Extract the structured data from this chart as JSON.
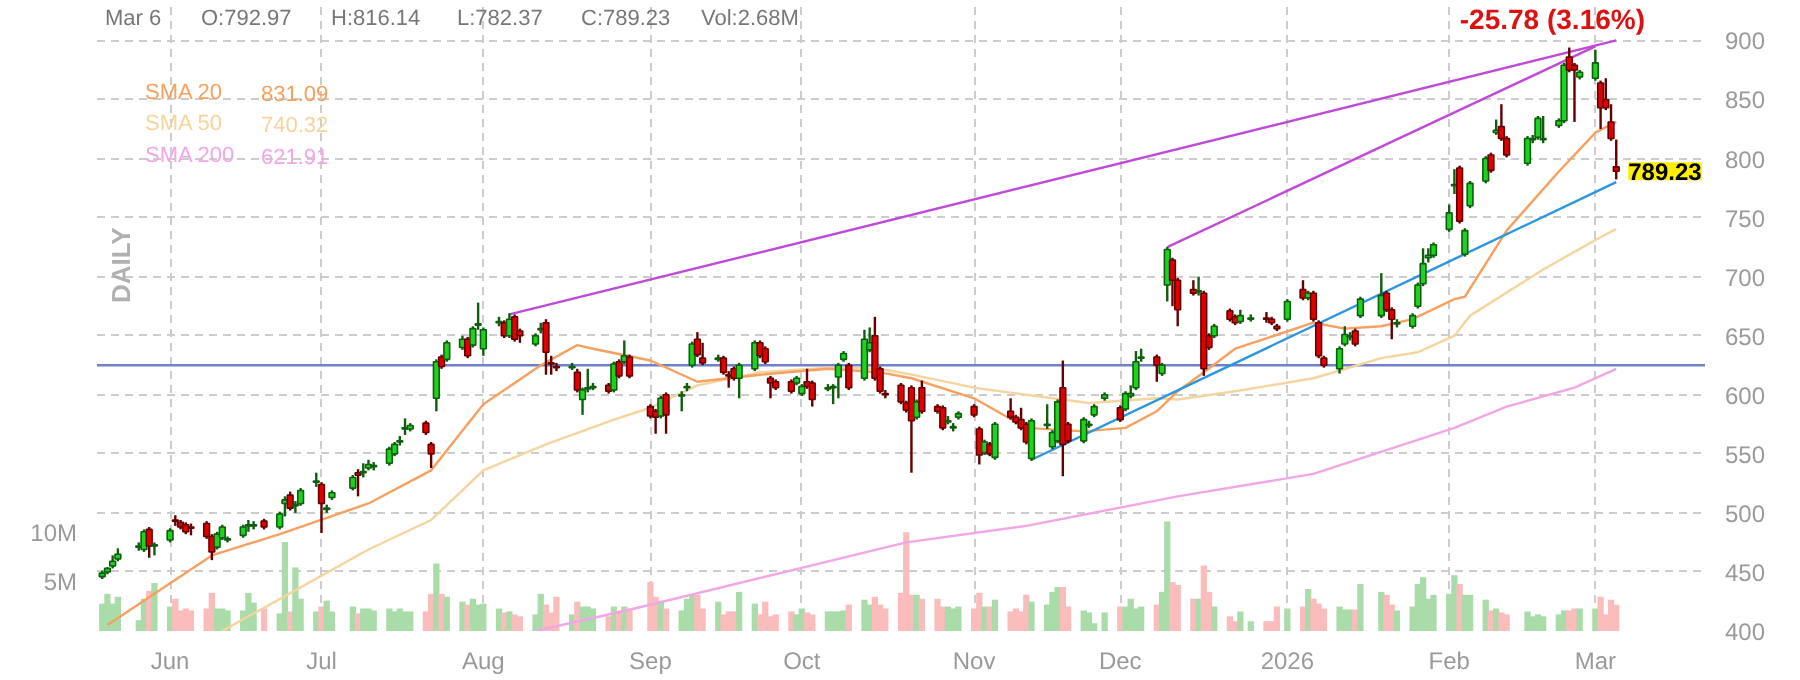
{
  "chart_data": {
    "type": "candlestick",
    "x": [
      "2025-05-20",
      "2025-05-21",
      "2025-05-22",
      "2025-05-23",
      "2025-05-27",
      "2025-05-28",
      "2025-05-29",
      "2025-05-30",
      "2025-06-02",
      "2025-06-03",
      "2025-06-04",
      "2025-06-05",
      "2025-06-06",
      "2025-06-09",
      "2025-06-10",
      "2025-06-11",
      "2025-06-12",
      "2025-06-13",
      "2025-06-16",
      "2025-06-17",
      "2025-06-18",
      "2025-06-20",
      "2025-06-23",
      "2025-06-24",
      "2025-06-25",
      "2025-06-26",
      "2025-06-27",
      "2025-06-30",
      "2025-07-01",
      "2025-07-02",
      "2025-07-03",
      "2025-07-07",
      "2025-07-08",
      "2025-07-09",
      "2025-07-10",
      "2025-07-11",
      "2025-07-14",
      "2025-07-15",
      "2025-07-16",
      "2025-07-17",
      "2025-07-18",
      "2025-07-21",
      "2025-07-22",
      "2025-07-23",
      "2025-07-24",
      "2025-07-25",
      "2025-07-28",
      "2025-07-29",
      "2025-07-30",
      "2025-07-31",
      "2025-08-01",
      "2025-08-04",
      "2025-08-05",
      "2025-08-06",
      "2025-08-07",
      "2025-08-08",
      "2025-08-11",
      "2025-08-12",
      "2025-08-13",
      "2025-08-14",
      "2025-08-15",
      "2025-08-18",
      "2025-08-19",
      "2025-08-20",
      "2025-08-21",
      "2025-08-22",
      "2025-08-25",
      "2025-08-26",
      "2025-08-27",
      "2025-08-28",
      "2025-08-29",
      "2025-09-02",
      "2025-09-03",
      "2025-09-04",
      "2025-09-05",
      "2025-09-08",
      "2025-09-09",
      "2025-09-10",
      "2025-09-11",
      "2025-09-12",
      "2025-09-15",
      "2025-09-16",
      "2025-09-17",
      "2025-09-18",
      "2025-09-19",
      "2025-09-22",
      "2025-09-23",
      "2025-09-24",
      "2025-09-25",
      "2025-09-26",
      "2025-09-29",
      "2025-09-30",
      "2025-10-01",
      "2025-10-02",
      "2025-10-03",
      "2025-10-06",
      "2025-10-07",
      "2025-10-08",
      "2025-10-09",
      "2025-10-10",
      "2025-10-13",
      "2025-10-14",
      "2025-10-15",
      "2025-10-16",
      "2025-10-17",
      "2025-10-20",
      "2025-10-21",
      "2025-10-22",
      "2025-10-23",
      "2025-10-24",
      "2025-10-27",
      "2025-10-28",
      "2025-10-29",
      "2025-10-30",
      "2025-10-31",
      "2025-11-03",
      "2025-11-04",
      "2025-11-05",
      "2025-11-06",
      "2025-11-07",
      "2025-11-10",
      "2025-11-11",
      "2025-11-12",
      "2025-11-13",
      "2025-11-14",
      "2025-11-17",
      "2025-11-18",
      "2025-11-19",
      "2025-11-20",
      "2025-11-21",
      "2025-11-24",
      "2025-11-25",
      "2025-11-26",
      "2025-11-28",
      "2025-12-01",
      "2025-12-02",
      "2025-12-03",
      "2025-12-04",
      "2025-12-05",
      "2025-12-08",
      "2025-12-09",
      "2025-12-10",
      "2025-12-11",
      "2025-12-12",
      "2025-12-15",
      "2025-12-16",
      "2025-12-17",
      "2025-12-18",
      "2025-12-19",
      "2025-12-22",
      "2025-12-23",
      "2025-12-24",
      "2025-12-26",
      "2025-12-29",
      "2025-12-30",
      "2025-12-31",
      "2026-01-02",
      "2026-01-05",
      "2026-01-06",
      "2026-01-07",
      "2026-01-08",
      "2026-01-09",
      "2026-01-12",
      "2026-01-13",
      "2026-01-14",
      "2026-01-15",
      "2026-01-16",
      "2026-01-20",
      "2026-01-21",
      "2026-01-22",
      "2026-01-23",
      "2026-01-26",
      "2026-01-27",
      "2026-01-28",
      "2026-01-29",
      "2026-01-30",
      "2026-02-02",
      "2026-02-03",
      "2026-02-04",
      "2026-02-05",
      "2026-02-06",
      "2026-02-09",
      "2026-02-10",
      "2026-02-11",
      "2026-02-12",
      "2026-02-13",
      "2026-02-17",
      "2026-02-18",
      "2026-02-19",
      "2026-02-20",
      "2026-02-23",
      "2026-02-24",
      "2026-02-25",
      "2026-02-26",
      "2026-02-27",
      "2026-03-02",
      "2026-03-03",
      "2026-03-04",
      "2026-03-05",
      "2026-03-06"
    ],
    "ohlc": [
      [
        446,
        451,
        444,
        449
      ],
      [
        450,
        454,
        448,
        453
      ],
      [
        455,
        464,
        453,
        459
      ],
      [
        461,
        470,
        459,
        465
      ],
      [
        471,
        475,
        468,
        472
      ],
      [
        469,
        486,
        467,
        484
      ],
      [
        486,
        488,
        462,
        472
      ],
      [
        472,
        475,
        464,
        473
      ],
      [
        477,
        487,
        475,
        485
      ],
      [
        494,
        498,
        489,
        493
      ],
      [
        492,
        494,
        486,
        488
      ],
      [
        490,
        492,
        482,
        484
      ],
      [
        488,
        491,
        481,
        487
      ],
      [
        491,
        493,
        478,
        480
      ],
      [
        480,
        482,
        460,
        467
      ],
      [
        471,
        484,
        469,
        482
      ],
      [
        479,
        490,
        477,
        488
      ],
      [
        477,
        480,
        475,
        478
      ],
      [
        481,
        490,
        479,
        488
      ],
      [
        489,
        494,
        484,
        490
      ],
      [
        489,
        493,
        486,
        490
      ],
      [
        493,
        495,
        486,
        488
      ],
      [
        488,
        501,
        486,
        499
      ],
      [
        508,
        514,
        497,
        511
      ],
      [
        515,
        518,
        502,
        504
      ],
      [
        506,
        510,
        500,
        507
      ],
      [
        508,
        521,
        506,
        519
      ],
      [
        526,
        534,
        522,
        527
      ],
      [
        524,
        526,
        483,
        508
      ],
      [
        503,
        507,
        500,
        504
      ],
      [
        513,
        519,
        511,
        517
      ],
      [
        521,
        532,
        519,
        530
      ],
      [
        534,
        537,
        514,
        532
      ],
      [
        534,
        542,
        530,
        535
      ],
      [
        538,
        545,
        536,
        541
      ],
      [
        539,
        543,
        536,
        540
      ],
      [
        542,
        556,
        540,
        554
      ],
      [
        550,
        560,
        548,
        558
      ],
      [
        560,
        565,
        557,
        561
      ],
      [
        571,
        580,
        566,
        572
      ],
      [
        571,
        576,
        569,
        574
      ],
      [
        576,
        578,
        566,
        568
      ],
      [
        558,
        560,
        538,
        550
      ],
      [
        597,
        630,
        586,
        628
      ],
      [
        632,
        634,
        622,
        624
      ],
      [
        630,
        646,
        628,
        644
      ],
      [
        640,
        650,
        638,
        647
      ],
      [
        647,
        649,
        631,
        633
      ],
      [
        642,
        658,
        640,
        656
      ],
      [
        659,
        678,
        655,
        660
      ],
      [
        639,
        657,
        633,
        655
      ],
      [
        661,
        666,
        658,
        662
      ],
      [
        661,
        663,
        648,
        650
      ],
      [
        650,
        669,
        648,
        664
      ],
      [
        666,
        668,
        645,
        647
      ],
      [
        654,
        656,
        644,
        650
      ],
      [
        643,
        652,
        641,
        650
      ],
      [
        655,
        661,
        652,
        656
      ],
      [
        661,
        664,
        617,
        636
      ],
      [
        627,
        633,
        617,
        626
      ],
      [
        624,
        627,
        620,
        623
      ],
      [
        623,
        627,
        621,
        624
      ],
      [
        619,
        622,
        602,
        604
      ],
      [
        596,
        606,
        583,
        604
      ],
      [
        605,
        622,
        602,
        606
      ],
      [
        606,
        610,
        604,
        607
      ],
      [
        608,
        610,
        601,
        603
      ],
      [
        604,
        628,
        602,
        626
      ],
      [
        628,
        630,
        614,
        616
      ],
      [
        628,
        646,
        626,
        633
      ],
      [
        632,
        634,
        614,
        616
      ],
      [
        590,
        592,
        580,
        582
      ],
      [
        586,
        588,
        567,
        581
      ],
      [
        582,
        599,
        580,
        597
      ],
      [
        600,
        602,
        567,
        583
      ],
      [
        599,
        603,
        586,
        600
      ],
      [
        606,
        610,
        603,
        607
      ],
      [
        625,
        645,
        623,
        643
      ],
      [
        647,
        653,
        632,
        634
      ],
      [
        631,
        644,
        625,
        627
      ],
      [
        630,
        634,
        628,
        631
      ],
      [
        631,
        633,
        617,
        619
      ],
      [
        617,
        620,
        606,
        616
      ],
      [
        622,
        624,
        612,
        614
      ],
      [
        614,
        627,
        597,
        625
      ],
      [
        622,
        646,
        620,
        644
      ],
      [
        644,
        646,
        631,
        633
      ],
      [
        639,
        641,
        626,
        628
      ],
      [
        614,
        616,
        597,
        610
      ],
      [
        611,
        613,
        604,
        606
      ],
      [
        611,
        613,
        601,
        603
      ],
      [
        610,
        616,
        608,
        614
      ],
      [
        601,
        609,
        599,
        607
      ],
      [
        611,
        622,
        605,
        607
      ],
      [
        610,
        612,
        590,
        596
      ],
      [
        605,
        609,
        603,
        606
      ],
      [
        606,
        609,
        592,
        607
      ],
      [
        615,
        627,
        597,
        625
      ],
      [
        630,
        637,
        628,
        635
      ],
      [
        625,
        627,
        604,
        606
      ],
      [
        614,
        655,
        612,
        647
      ],
      [
        638,
        657,
        636,
        644
      ],
      [
        650,
        666,
        612,
        614
      ],
      [
        622,
        624,
        601,
        603
      ],
      [
        601,
        604,
        597,
        600
      ],
      [
        608,
        610,
        592,
        594
      ],
      [
        593,
        595,
        585,
        587
      ],
      [
        606,
        608,
        534,
        578
      ],
      [
        581,
        596,
        579,
        594
      ],
      [
        606,
        612,
        584,
        586
      ],
      [
        590,
        592,
        584,
        586
      ],
      [
        589,
        591,
        570,
        572
      ],
      [
        577,
        582,
        575,
        578
      ],
      [
        572,
        576,
        569,
        573
      ],
      [
        581,
        586,
        579,
        584
      ],
      [
        590,
        592,
        581,
        583
      ],
      [
        571,
        573,
        541,
        549
      ],
      [
        551,
        562,
        549,
        560
      ],
      [
        558,
        560,
        548,
        550
      ],
      [
        547,
        577,
        545,
        575
      ],
      [
        586,
        597,
        579,
        581
      ],
      [
        581,
        583,
        575,
        577
      ],
      [
        579,
        589,
        570,
        572
      ],
      [
        575,
        577,
        558,
        560
      ],
      [
        546,
        580,
        544,
        578
      ],
      [
        574,
        592,
        571,
        575
      ],
      [
        556,
        570,
        554,
        568
      ],
      [
        561,
        596,
        559,
        594
      ],
      [
        606,
        629,
        531,
        558
      ],
      [
        575,
        577,
        559,
        561
      ],
      [
        561,
        581,
        559,
        579
      ],
      [
        574,
        578,
        572,
        575
      ],
      [
        583,
        592,
        581,
        590
      ],
      [
        597,
        602,
        595,
        600
      ],
      [
        589,
        591,
        577,
        579
      ],
      [
        588,
        603,
        586,
        601
      ],
      [
        599,
        608,
        597,
        601
      ],
      [
        606,
        637,
        604,
        628
      ],
      [
        631,
        639,
        628,
        632
      ],
      [
        632,
        634,
        611,
        625
      ],
      [
        618,
        627,
        616,
        625
      ],
      [
        693,
        725,
        679,
        723
      ],
      [
        714,
        716,
        675,
        697
      ],
      [
        697,
        699,
        658,
        672
      ],
      [
        689,
        697,
        684,
        686
      ],
      [
        687,
        700,
        684,
        688
      ],
      [
        686,
        688,
        616,
        622
      ],
      [
        650,
        652,
        638,
        640
      ],
      [
        650,
        660,
        648,
        658
      ],
      [
        671,
        673,
        662,
        664
      ],
      [
        666,
        668,
        659,
        661
      ],
      [
        662,
        672,
        660,
        667
      ],
      [
        664,
        668,
        662,
        665
      ],
      [
        665,
        670,
        661,
        664
      ],
      [
        664,
        666,
        659,
        661
      ],
      [
        658,
        660,
        654,
        656
      ],
      [
        664,
        681,
        662,
        679
      ],
      [
        689,
        697,
        680,
        682
      ],
      [
        682,
        688,
        680,
        686
      ],
      [
        686,
        688,
        662,
        664
      ],
      [
        661,
        663,
        631,
        633
      ],
      [
        631,
        633,
        623,
        625
      ],
      [
        622,
        641,
        618,
        639
      ],
      [
        643,
        658,
        641,
        651
      ],
      [
        649,
        653,
        646,
        650
      ],
      [
        654,
        656,
        641,
        643
      ],
      [
        667,
        683,
        665,
        681
      ],
      [
        667,
        703,
        665,
        684
      ],
      [
        686,
        688,
        670,
        672
      ],
      [
        672,
        674,
        647,
        664
      ],
      [
        660,
        664,
        657,
        661
      ],
      [
        658,
        669,
        656,
        667
      ],
      [
        675,
        695,
        673,
        693
      ],
      [
        694,
        724,
        692,
        711
      ],
      [
        716,
        724,
        712,
        718
      ],
      [
        718,
        729,
        716,
        727
      ],
      [
        740,
        761,
        738,
        754
      ],
      [
        777,
        791,
        770,
        778
      ],
      [
        792,
        794,
        745,
        747
      ],
      [
        719,
        741,
        717,
        739
      ],
      [
        760,
        781,
        758,
        779
      ],
      [
        781,
        802,
        779,
        800
      ],
      [
        803,
        805,
        788,
        790
      ],
      [
        822,
        833,
        820,
        824
      ],
      [
        827,
        846,
        815,
        817
      ],
      [
        817,
        819,
        801,
        803
      ],
      [
        796,
        819,
        794,
        817
      ],
      [
        816,
        820,
        813,
        817
      ],
      [
        818,
        836,
        816,
        834
      ],
      [
        816,
        836,
        813,
        817
      ],
      [
        828,
        834,
        826,
        832
      ],
      [
        832,
        881,
        830,
        879
      ],
      [
        886,
        894,
        873,
        875
      ],
      [
        879,
        881,
        831,
        875
      ],
      [
        869,
        875,
        867,
        873
      ],
      [
        868,
        892,
        866,
        881
      ],
      [
        864,
        866,
        825,
        843
      ],
      [
        850,
        868,
        841,
        843
      ],
      [
        831,
        846,
        815,
        817
      ],
      [
        792.97,
        816.14,
        782.37,
        789.23
      ]
    ],
    "colors": [
      "#1ed21e",
      "#1ed21e",
      "#1ed21e",
      "#1ed21e",
      "#1ed21e",
      "#1ed21e",
      "#e00000",
      "#1ed21e",
      "#1ed21e",
      "#e00000",
      "#e00000",
      "#e00000",
      "#e00000",
      "#e00000",
      "#e00000",
      "#1ed21e",
      "#1ed21e",
      "#1ed21e",
      "#1ed21e",
      "#1ed21e",
      "#1ed21e",
      "#e00000",
      "#1ed21e",
      "#1ed21e",
      "#e00000",
      "#1ed21e",
      "#1ed21e",
      "#1ed21e",
      "#e00000",
      "#1ed21e",
      "#1ed21e",
      "#1ed21e",
      "#e00000",
      "#1ed21e",
      "#1ed21e",
      "#1ed21e",
      "#1ed21e",
      "#1ed21e",
      "#1ed21e",
      "#1ed21e",
      "#1ed21e",
      "#e00000",
      "#e00000",
      "#1ed21e",
      "#e00000",
      "#1ed21e",
      "#1ed21e",
      "#e00000",
      "#1ed21e",
      "#1ed21e",
      "#1ed21e",
      "#1ed21e",
      "#e00000",
      "#1ed21e",
      "#e00000",
      "#e00000",
      "#1ed21e",
      "#1ed21e",
      "#e00000",
      "#e00000",
      "#e00000",
      "#1ed21e",
      "#e00000",
      "#1ed21e",
      "#1ed21e",
      "#1ed21e",
      "#e00000",
      "#1ed21e",
      "#e00000",
      "#1ed21e",
      "#e00000",
      "#e00000",
      "#e00000",
      "#1ed21e",
      "#e00000",
      "#1ed21e",
      "#1ed21e",
      "#1ed21e",
      "#e00000",
      "#e00000",
      "#1ed21e",
      "#e00000",
      "#e00000",
      "#e00000",
      "#1ed21e",
      "#1ed21e",
      "#e00000",
      "#e00000",
      "#e00000",
      "#e00000",
      "#e00000",
      "#1ed21e",
      "#1ed21e",
      "#e00000",
      "#e00000",
      "#1ed21e",
      "#1ed21e",
      "#1ed21e",
      "#1ed21e",
      "#e00000",
      "#1ed21e",
      "#1ed21e",
      "#e00000",
      "#e00000",
      "#e00000",
      "#e00000",
      "#e00000",
      "#e00000",
      "#1ed21e",
      "#e00000",
      "#e00000",
      "#e00000",
      "#1ed21e",
      "#1ed21e",
      "#1ed21e",
      "#e00000",
      "#e00000",
      "#1ed21e",
      "#e00000",
      "#1ed21e",
      "#e00000",
      "#e00000",
      "#e00000",
      "#e00000",
      "#1ed21e",
      "#1ed21e",
      "#1ed21e",
      "#1ed21e",
      "#e00000",
      "#e00000",
      "#1ed21e",
      "#1ed21e",
      "#1ed21e",
      "#1ed21e",
      "#e00000",
      "#1ed21e",
      "#1ed21e",
      "#1ed21e",
      "#1ed21e",
      "#e00000",
      "#1ed21e",
      "#1ed21e",
      "#e00000",
      "#e00000",
      "#e00000",
      "#1ed21e",
      "#e00000",
      "#e00000",
      "#1ed21e",
      "#e00000",
      "#e00000",
      "#1ed21e",
      "#1ed21e",
      "#e00000",
      "#e00000",
      "#e00000",
      "#1ed21e",
      "#e00000",
      "#1ed21e",
      "#e00000",
      "#e00000",
      "#e00000",
      "#1ed21e",
      "#1ed21e",
      "#1ed21e",
      "#e00000",
      "#1ed21e",
      "#1ed21e",
      "#e00000",
      "#e00000",
      "#1ed21e",
      "#1ed21e",
      "#1ed21e",
      "#1ed21e",
      "#1ed21e",
      "#1ed21e",
      "#1ed21e",
      "#1ed21e",
      "#e00000",
      "#1ed21e",
      "#1ed21e",
      "#1ed21e",
      "#e00000",
      "#1ed21e",
      "#e00000",
      "#e00000",
      "#1ed21e",
      "#1ed21e",
      "#1ed21e",
      "#1ed21e",
      "#1ed21e",
      "#1ed21e",
      "#e00000",
      "#e00000",
      "#1ed21e",
      "#1ed21e",
      "#e00000",
      "#e00000",
      "#e00000",
      "#e00000"
    ],
    "series": [
      {
        "type": "bar",
        "axis": "y2",
        "colors": [
          "#a9dca9",
          "#a9dca9",
          "#a9dca9",
          "#a9dca9",
          "#a9dca9",
          "#a9dca9",
          "#fbbcbc",
          "#a9dca9",
          "#a9dca9",
          "#fbbcbc",
          "#fbbcbc",
          "#fbbcbc",
          "#fbbcbc",
          "#fbbcbc",
          "#fbbcbc",
          "#a9dca9",
          "#a9dca9",
          "#a9dca9",
          "#a9dca9",
          "#a9dca9",
          "#a9dca9",
          "#fbbcbc",
          "#a9dca9",
          "#a9dca9",
          "#fbbcbc",
          "#a9dca9",
          "#a9dca9",
          "#a9dca9",
          "#fbbcbc",
          "#a9dca9",
          "#a9dca9",
          "#a9dca9",
          "#fbbcbc",
          "#a9dca9",
          "#a9dca9",
          "#a9dca9",
          "#a9dca9",
          "#a9dca9",
          "#a9dca9",
          "#a9dca9",
          "#a9dca9",
          "#fbbcbc",
          "#fbbcbc",
          "#a9dca9",
          "#fbbcbc",
          "#a9dca9",
          "#a9dca9",
          "#fbbcbc",
          "#a9dca9",
          "#a9dca9",
          "#a9dca9",
          "#a9dca9",
          "#fbbcbc",
          "#a9dca9",
          "#fbbcbc",
          "#fbbcbc",
          "#a9dca9",
          "#a9dca9",
          "#fbbcbc",
          "#fbbcbc",
          "#fbbcbc",
          "#a9dca9",
          "#fbbcbc",
          "#a9dca9",
          "#a9dca9",
          "#a9dca9",
          "#fbbcbc",
          "#a9dca9",
          "#fbbcbc",
          "#a9dca9",
          "#fbbcbc",
          "#fbbcbc",
          "#fbbcbc",
          "#a9dca9",
          "#fbbcbc",
          "#a9dca9",
          "#a9dca9",
          "#a9dca9",
          "#fbbcbc",
          "#fbbcbc",
          "#a9dca9",
          "#fbbcbc",
          "#fbbcbc",
          "#fbbcbc",
          "#a9dca9",
          "#a9dca9",
          "#fbbcbc",
          "#fbbcbc",
          "#fbbcbc",
          "#fbbcbc",
          "#fbbcbc",
          "#a9dca9",
          "#a9dca9",
          "#fbbcbc",
          "#fbbcbc",
          "#a9dca9",
          "#a9dca9",
          "#a9dca9",
          "#a9dca9",
          "#fbbcbc",
          "#a9dca9",
          "#a9dca9",
          "#fbbcbc",
          "#fbbcbc",
          "#fbbcbc",
          "#fbbcbc",
          "#fbbcbc",
          "#fbbcbc",
          "#a9dca9",
          "#fbbcbc",
          "#fbbcbc",
          "#fbbcbc",
          "#a9dca9",
          "#a9dca9",
          "#a9dca9",
          "#fbbcbc",
          "#fbbcbc",
          "#a9dca9",
          "#fbbcbc",
          "#a9dca9",
          "#fbbcbc",
          "#fbbcbc",
          "#fbbcbc",
          "#fbbcbc",
          "#a9dca9",
          "#a9dca9",
          "#a9dca9",
          "#a9dca9",
          "#fbbcbc",
          "#fbbcbc",
          "#a9dca9",
          "#a9dca9",
          "#a9dca9",
          "#a9dca9",
          "#fbbcbc",
          "#a9dca9",
          "#a9dca9",
          "#a9dca9",
          "#a9dca9",
          "#fbbcbc",
          "#a9dca9",
          "#a9dca9",
          "#fbbcbc",
          "#fbbcbc",
          "#fbbcbc",
          "#a9dca9",
          "#fbbcbc",
          "#fbbcbc",
          "#a9dca9",
          "#fbbcbc",
          "#fbbcbc",
          "#a9dca9",
          "#a9dca9",
          "#fbbcbc",
          "#fbbcbc",
          "#fbbcbc",
          "#a9dca9",
          "#fbbcbc",
          "#a9dca9",
          "#fbbcbc",
          "#fbbcbc",
          "#fbbcbc",
          "#a9dca9",
          "#a9dca9",
          "#a9dca9",
          "#fbbcbc",
          "#a9dca9",
          "#a9dca9",
          "#fbbcbc",
          "#fbbcbc",
          "#a9dca9",
          "#a9dca9",
          "#a9dca9",
          "#a9dca9",
          "#a9dca9",
          "#a9dca9",
          "#a9dca9",
          "#a9dca9",
          "#fbbcbc",
          "#a9dca9",
          "#a9dca9",
          "#a9dca9",
          "#fbbcbc",
          "#a9dca9",
          "#fbbcbc",
          "#fbbcbc",
          "#a9dca9",
          "#a9dca9",
          "#a9dca9",
          "#a9dca9",
          "#a9dca9",
          "#a9dca9",
          "#fbbcbc",
          "#fbbcbc",
          "#a9dca9",
          "#a9dca9",
          "#fbbcbc",
          "#fbbcbc",
          "#fbbcbc",
          "#fbbcbc"
        ],
        "values": [
          2.8,
          3.8,
          2.8,
          3.5,
          1.1,
          3.3,
          4.1,
          4.9,
          2.5,
          3.3,
          2.1,
          2.3,
          2.1,
          2.3,
          3.9,
          2.3,
          2.3,
          2.1,
          2.1,
          3.9,
          2.9,
          2.3,
          1.8,
          9.1,
          2.0,
          6.5,
          3.3,
          2.0,
          2.5,
          3.1,
          2.0,
          2.5,
          1.8,
          2.3,
          2.3,
          2.1,
          2.3,
          2.0,
          2.3,
          2.0,
          2.0,
          2.0,
          3.8,
          6.9,
          3.8,
          3.5,
          3.0,
          2.7,
          3.3,
          2.7,
          2.8,
          2.3,
          1.9,
          2.0,
          1.7,
          1.5,
          1.7,
          3.8,
          2.7,
          1.9,
          3.5,
          1.7,
          3.0,
          2.5,
          2.5,
          2.3,
          1.5,
          2.5,
          2.1,
          2.5,
          2.3,
          5.0,
          3.5,
          3.1,
          2.3,
          2.1,
          3.3,
          3.7,
          3.7,
          2.3,
          3.0,
          1.7,
          2.0,
          2.0,
          4.0,
          2.8,
          1.7,
          3.0,
          1.5,
          1.7,
          2.0,
          1.7,
          2.3,
          1.9,
          1.7,
          2.0,
          2.0,
          2.0,
          2.1,
          2.7,
          3.2,
          2.7,
          3.5,
          2.7,
          2.3,
          3.9,
          10.1,
          3.7,
          3.7,
          3.3,
          3.3,
          2.5,
          2.5,
          2.3,
          2.5,
          2.3,
          3.9,
          2.5,
          2.5,
          3.2,
          2.0,
          2.3,
          2.0,
          3.7,
          3.0,
          2.7,
          4.0,
          4.5,
          4.5,
          2.5,
          2.1,
          1.9,
          0.8,
          1.9,
          2.5,
          2.5,
          3.3,
          2.3,
          2.5,
          2.7,
          4.0,
          11.2,
          5.0,
          4.7,
          3.3,
          3.3,
          6.7,
          4.0,
          2.5,
          1.5,
          1.0,
          2.0,
          1.0,
          1.0,
          1.0,
          2.5,
          2.3,
          2.5,
          4.3,
          3.3,
          2.8,
          2.3,
          2.5,
          2.2,
          2.2,
          2.2,
          4.8,
          4.0,
          3.7,
          2.7,
          2.1,
          2.5,
          4.8,
          5.5,
          3.3,
          3.7,
          3.8,
          5.7,
          4.8,
          3.7,
          3.7,
          3.2,
          2.1,
          2.3,
          1.9,
          1.7,
          2.0,
          1.5,
          1.7,
          1.5,
          1.7,
          2.1,
          2.1,
          2.3,
          2.3,
          2.3,
          3.5,
          1.7,
          3.2,
          2.68
        ]
      },
      {
        "type": "line",
        "name": "SMA 200",
        "color": "#f2a6e6",
        "x": [
          "2025-08-11",
          "2025-08-29",
          "2025-10-21",
          "2025-11-13",
          "2025-12-12",
          "2026-01-07",
          "2026-02-03",
          "2026-02-13",
          "2026-02-26",
          "2026-03-06"
        ],
        "values": [
          400,
          418,
          475,
          489,
          514,
          533,
          572,
          590,
          606,
          621.91
        ]
      },
      {
        "type": "line",
        "name": "SMA 50",
        "color": "#f5d49e",
        "x": [
          "2025-06-12",
          "2025-07-10",
          "2025-07-22",
          "2025-08-01",
          "2025-08-13",
          "2025-08-26",
          "2025-09-02",
          "2025-09-11",
          "2025-09-23",
          "2025-10-06",
          "2025-10-16",
          "2025-10-22",
          "2025-11-03",
          "2025-11-13",
          "2025-11-25",
          "2025-12-08",
          "2025-12-12",
          "2025-12-23",
          "2026-01-07",
          "2026-01-20",
          "2026-01-27",
          "2026-02-03",
          "2026-02-06",
          "2026-02-20",
          "2026-03-02",
          "2026-03-06"
        ],
        "values": [
          400,
          469,
          494,
          536,
          558,
          579,
          589,
          608,
          619,
          623,
          622,
          617,
          606,
          600,
          593,
          597,
          596,
          603,
          614,
          631,
          636,
          650,
          667,
          706,
          731,
          740.32
        ]
      },
      {
        "type": "line",
        "name": "SMA 20",
        "color": "#f7a060",
        "x": [
          "2025-05-21",
          "2025-06-10",
          "2025-06-23",
          "2025-07-10",
          "2025-07-22",
          "2025-08-01",
          "2025-08-12",
          "2025-08-19",
          "2025-08-22",
          "2025-09-02",
          "2025-09-11",
          "2025-09-23",
          "2025-10-06",
          "2025-10-16",
          "2025-10-22",
          "2025-11-03",
          "2025-11-13",
          "2025-11-24",
          "2025-12-02",
          "2025-12-08",
          "2025-12-12",
          "2025-12-17",
          "2025-12-23",
          "2026-01-07",
          "2026-01-13",
          "2026-01-20",
          "2026-01-26",
          "2026-02-03",
          "2026-02-05",
          "2026-02-13",
          "2026-02-23",
          "2026-03-02",
          "2026-03-06"
        ],
        "values": [
          405,
          464,
          482,
          508,
          536,
          592,
          625,
          642,
          639,
          629,
          611,
          617,
          622,
          619,
          614,
          597,
          572,
          569,
          572,
          586,
          603,
          619,
          639,
          661,
          656,
          658,
          664,
          681,
          683,
          739,
          789,
          822,
          831.09
        ]
      },
      {
        "type": "line",
        "color": "#c04ad8",
        "x": [
          "2025-08-06",
          "2026-03-06"
        ],
        "values": [
          668,
          900
        ]
      },
      {
        "type": "line",
        "color": "#c04ad8",
        "x": [
          "2025-12-10",
          "2026-03-02"
        ],
        "values": [
          725,
          895
        ]
      },
      {
        "type": "line",
        "color": "#2a96e0",
        "x": [
          "2025-11-14",
          "2026-03-06"
        ],
        "values": [
          545,
          780
        ]
      }
    ],
    "ref_lines": [
      {
        "axis": "y",
        "value": 625,
        "color": "#6f80cc"
      }
    ],
    "xlim": [
      "2025-05-19",
      "2026-03-23"
    ],
    "xticks": [
      {
        "value": "2025-06-02",
        "label": "Jun"
      },
      {
        "value": "2025-07-01",
        "label": "Jul"
      },
      {
        "value": "2025-08-01",
        "label": "Aug"
      },
      {
        "value": "2025-09-02",
        "label": "Sep"
      },
      {
        "value": "2025-10-01",
        "label": "Oct"
      },
      {
        "value": "2025-11-03",
        "label": "Nov"
      },
      {
        "value": "2025-12-01",
        "label": "Dec"
      },
      {
        "value": "2026-01-02",
        "label": "2026"
      },
      {
        "value": "2026-02-02",
        "label": "Feb"
      },
      {
        "value": "2026-03-02",
        "label": "Mar"
      }
    ],
    "ylim": [
      400,
      930
    ],
    "yticks": [
      400,
      450,
      500,
      550,
      600,
      650,
      700,
      750,
      800,
      850,
      900
    ],
    "y2lim": [
      0,
      64
    ],
    "y2ticks": [
      {
        "value": 5,
        "label": "5M"
      },
      {
        "value": 10,
        "label": "10M"
      }
    ],
    "grid": true,
    "legend": "top left",
    "annotations": [
      "Mar 6",
      "O:792.97",
      "H:816.14",
      "L:782.37",
      "C:789.23",
      "Vol:2.68M",
      "-25.78 (3.16%)",
      "DAILY",
      "831.09",
      "740.32",
      "621.91",
      {
        "text": "789.23",
        "x": "2026-03-06",
        "y": 789.23
      }
    ]
  }
}
